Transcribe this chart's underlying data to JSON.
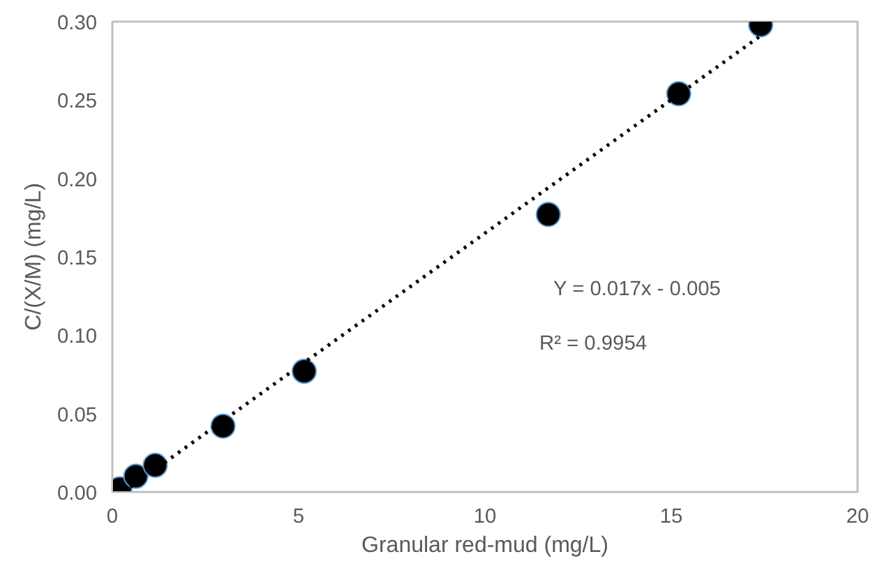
{
  "chart_data": {
    "type": "scatter",
    "xlabel": "Granular red-mud (mg/L)",
    "ylabel": "C/(X/M) (mg/L)",
    "xlim": [
      0,
      20
    ],
    "xticks": [
      0,
      5,
      10,
      15,
      20
    ],
    "ylim": [
      0,
      0.3
    ],
    "yticks": [
      {
        "value": 0,
        "label": "0.00"
      },
      {
        "value": 0.05,
        "label": "0.05"
      },
      {
        "value": 0.1,
        "label": "0.10"
      },
      {
        "value": 0.15,
        "label": "0.15"
      },
      {
        "value": 0.2,
        "label": "0.20"
      },
      {
        "value": 0.25,
        "label": "0.25"
      },
      {
        "value": 0.3,
        "label": "0.30"
      }
    ],
    "grid": false,
    "series": [
      {
        "marker": "circle",
        "color": "#000000",
        "x": [
          0.2,
          0.63,
          1.15,
          2.97,
          5.15,
          11.7,
          15.2,
          17.4
        ],
        "values": [
          0.002,
          0.01,
          0.017,
          0.042,
          0.077,
          0.177,
          0.254,
          0.298
        ]
      },
      {
        "type": "line",
        "color": "#000000",
        "line_style": "dotted",
        "x": [
          0.3,
          17.4
        ],
        "values": [
          0.0,
          0.291
        ]
      }
    ],
    "annotations": [
      "Y = 0.017x - 0.005",
      "R² = 0.9954"
    ]
  }
}
